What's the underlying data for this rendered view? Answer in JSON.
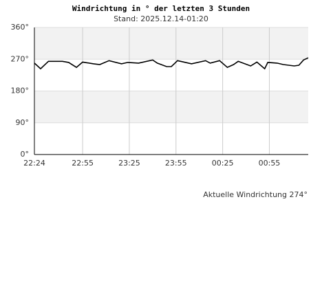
{
  "chart_data": {
    "type": "line",
    "title": "Windrichtung in ° der letzten 3 Stunden",
    "subtitle": "Stand: 2025.12.14-01:20",
    "annotation": "Aktuelle Windrichtung 274°",
    "x": [
      "22:24",
      "22:28",
      "22:33",
      "22:42",
      "22:46",
      "22:51",
      "22:55",
      "23:02",
      "23:06",
      "23:12",
      "23:20",
      "23:24",
      "23:31",
      "23:40",
      "23:43",
      "23:49",
      "23:52",
      "23:56",
      "00:05",
      "00:14",
      "00:17",
      "00:23",
      "00:28",
      "00:32",
      "00:35",
      "00:43",
      "00:47",
      "00:52",
      "00:54",
      "01:00",
      "01:04",
      "01:11",
      "01:14",
      "01:17",
      "01:20"
    ],
    "values": [
      259,
      243,
      264,
      264,
      261,
      247,
      262,
      257,
      255,
      266,
      257,
      261,
      259,
      268,
      259,
      249,
      249,
      266,
      257,
      266,
      259,
      266,
      247,
      255,
      264,
      251,
      262,
      243,
      261,
      259,
      255,
      251,
      253,
      268,
      274
    ],
    "color": "#000000",
    "xlim": [
      "22:24",
      "01:20"
    ],
    "xticks": [
      "22:24",
      "22:55",
      "23:25",
      "23:55",
      "00:25",
      "00:55"
    ],
    "ylim": [
      0,
      360
    ],
    "yticks": [
      {
        "value": 0,
        "label": "0°"
      },
      {
        "value": 90,
        "label": "90°"
      },
      {
        "value": 180,
        "label": "180°"
      },
      {
        "value": 270,
        "label": "270°"
      },
      {
        "value": 360,
        "label": "360°"
      }
    ],
    "grid": true
  }
}
